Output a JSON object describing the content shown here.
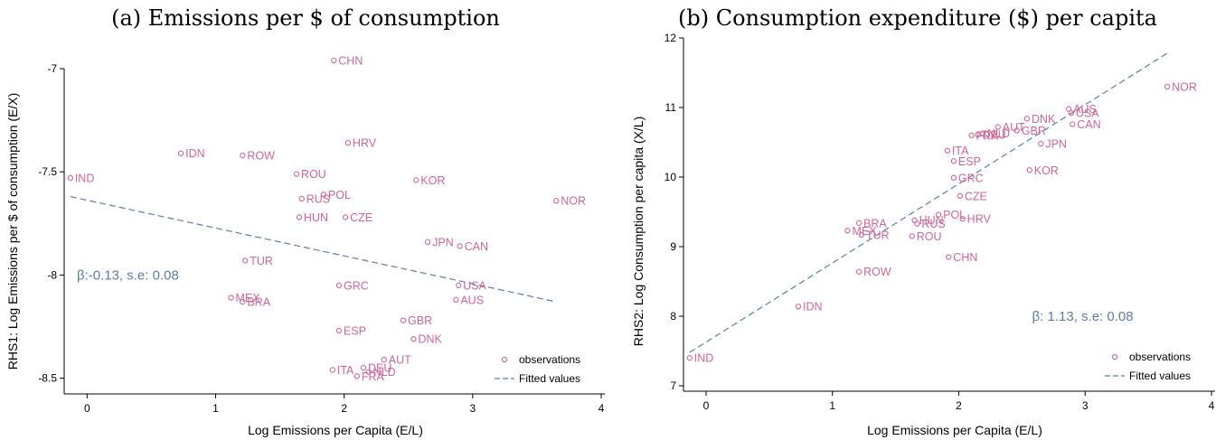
{
  "colors": {
    "marker": "#cc6699",
    "fit": "#5a7fa6",
    "axis": "#000000"
  },
  "legend": {
    "observations": "observations",
    "fitted": "Fitted values"
  },
  "chart_data": [
    {
      "type": "scatter",
      "title": "(a) Emissions per $ of consumption",
      "xlabel": "Log Emissions per Capita (E/L)",
      "ylabel": "RHS1: Log Emissions per $ of consumption (E/X)",
      "xlim": [
        -0.15,
        4.0
      ],
      "ylim": [
        -8.55,
        -6.93
      ],
      "xticks": [
        0,
        1,
        2,
        3,
        4
      ],
      "yticks": [
        -8.5,
        -8,
        -7.5,
        -7
      ],
      "ytick_labels": [
        "-8.5",
        "-8",
        "-7.5",
        "-7"
      ],
      "annotation": "β:-0.13, s.e: 0.08",
      "annotation_pos": [
        -0.08,
        -8.0
      ],
      "fit": {
        "x": [
          -0.13,
          3.65
        ],
        "y": [
          -7.62,
          -8.13
        ]
      },
      "legend_position": "bottom-right",
      "points": [
        {
          "label": "CHN",
          "x": 1.92,
          "y": -6.96
        },
        {
          "label": "HRV",
          "x": 2.03,
          "y": -7.36
        },
        {
          "label": "IDN",
          "x": 0.73,
          "y": -7.41
        },
        {
          "label": "ROW",
          "x": 1.21,
          "y": -7.42
        },
        {
          "label": "IND",
          "x": -0.13,
          "y": -7.53
        },
        {
          "label": "ROU",
          "x": 1.63,
          "y": -7.51
        },
        {
          "label": "KOR",
          "x": 2.56,
          "y": -7.54
        },
        {
          "label": "POL",
          "x": 1.84,
          "y": -7.61
        },
        {
          "label": "RUS",
          "x": 1.67,
          "y": -7.63
        },
        {
          "label": "NOR",
          "x": 3.65,
          "y": -7.64
        },
        {
          "label": "HUN",
          "x": 1.65,
          "y": -7.72
        },
        {
          "label": "CZE",
          "x": 2.01,
          "y": -7.72
        },
        {
          "label": "JPN",
          "x": 2.65,
          "y": -7.84
        },
        {
          "label": "CAN",
          "x": 2.9,
          "y": -7.86
        },
        {
          "label": "TUR",
          "x": 1.23,
          "y": -7.93
        },
        {
          "label": "GRC",
          "x": 1.96,
          "y": -8.05
        },
        {
          "label": "USA",
          "x": 2.89,
          "y": -8.05
        },
        {
          "label": "MEX",
          "x": 1.12,
          "y": -8.11
        },
        {
          "label": "BRA",
          "x": 1.21,
          "y": -8.13
        },
        {
          "label": "AUS",
          "x": 2.87,
          "y": -8.12
        },
        {
          "label": "GBR",
          "x": 2.46,
          "y": -8.22
        },
        {
          "label": "ESP",
          "x": 1.96,
          "y": -8.27
        },
        {
          "label": "DNK",
          "x": 2.54,
          "y": -8.31
        },
        {
          "label": "AUT",
          "x": 2.31,
          "y": -8.41
        },
        {
          "label": "DEU",
          "x": 2.15,
          "y": -8.45
        },
        {
          "label": "ITA",
          "x": 1.91,
          "y": -8.46
        },
        {
          "label": "NLD",
          "x": 2.19,
          "y": -8.47
        },
        {
          "label": "FRA",
          "x": 2.1,
          "y": -8.49
        }
      ]
    },
    {
      "type": "scatter",
      "title": "(b) Consumption expenditure ($) per capita",
      "xlabel": "Log Emissions per Capita (E/L)",
      "ylabel": "RHS2: Log Consumption per capita (X/L)",
      "xlim": [
        -0.15,
        4.0
      ],
      "ylim": [
        7.0,
        12.0
      ],
      "xticks": [
        0,
        1,
        2,
        3,
        4
      ],
      "yticks": [
        7,
        8,
        9,
        10,
        11,
        12
      ],
      "ytick_labels": [
        "7",
        "8",
        "9",
        "10",
        "11",
        "12"
      ],
      "annotation": "β: 1.13, s.e: 0.08",
      "annotation_pos": [
        2.58,
        8.0
      ],
      "fit": {
        "x": [
          -0.13,
          3.65
        ],
        "y": [
          7.48,
          11.78
        ]
      },
      "legend_position": "bottom-right",
      "points": [
        {
          "label": "NOR",
          "x": 3.65,
          "y": 11.3
        },
        {
          "label": "AUS",
          "x": 2.87,
          "y": 10.98
        },
        {
          "label": "USA",
          "x": 2.89,
          "y": 10.92
        },
        {
          "label": "DNK",
          "x": 2.54,
          "y": 10.84
        },
        {
          "label": "CAN",
          "x": 2.9,
          "y": 10.76
        },
        {
          "label": "AUT",
          "x": 2.31,
          "y": 10.72
        },
        {
          "label": "GBR",
          "x": 2.46,
          "y": 10.67
        },
        {
          "label": "NLD",
          "x": 2.19,
          "y": 10.63
        },
        {
          "label": "FRA",
          "x": 2.1,
          "y": 10.6
        },
        {
          "label": "DEU",
          "x": 2.15,
          "y": 10.61
        },
        {
          "label": "JPN",
          "x": 2.65,
          "y": 10.48
        },
        {
          "label": "ITA",
          "x": 1.91,
          "y": 10.38
        },
        {
          "label": "ESP",
          "x": 1.96,
          "y": 10.23
        },
        {
          "label": "KOR",
          "x": 2.56,
          "y": 10.1
        },
        {
          "label": "GRC",
          "x": 1.96,
          "y": 9.99
        },
        {
          "label": "CZE",
          "x": 2.01,
          "y": 9.73
        },
        {
          "label": "POL",
          "x": 1.84,
          "y": 9.46
        },
        {
          "label": "HUN",
          "x": 1.65,
          "y": 9.38
        },
        {
          "label": "HRV",
          "x": 2.03,
          "y": 9.4
        },
        {
          "label": "RUS",
          "x": 1.67,
          "y": 9.33
        },
        {
          "label": "BRA",
          "x": 1.21,
          "y": 9.34
        },
        {
          "label": "MEX",
          "x": 1.12,
          "y": 9.23
        },
        {
          "label": "TUR",
          "x": 1.23,
          "y": 9.17
        },
        {
          "label": "ROU",
          "x": 1.63,
          "y": 9.15
        },
        {
          "label": "CHN",
          "x": 1.92,
          "y": 8.85
        },
        {
          "label": "ROW",
          "x": 1.21,
          "y": 8.64
        },
        {
          "label": "IDN",
          "x": 0.73,
          "y": 8.14
        },
        {
          "label": "IND",
          "x": -0.13,
          "y": 7.4
        }
      ]
    }
  ]
}
